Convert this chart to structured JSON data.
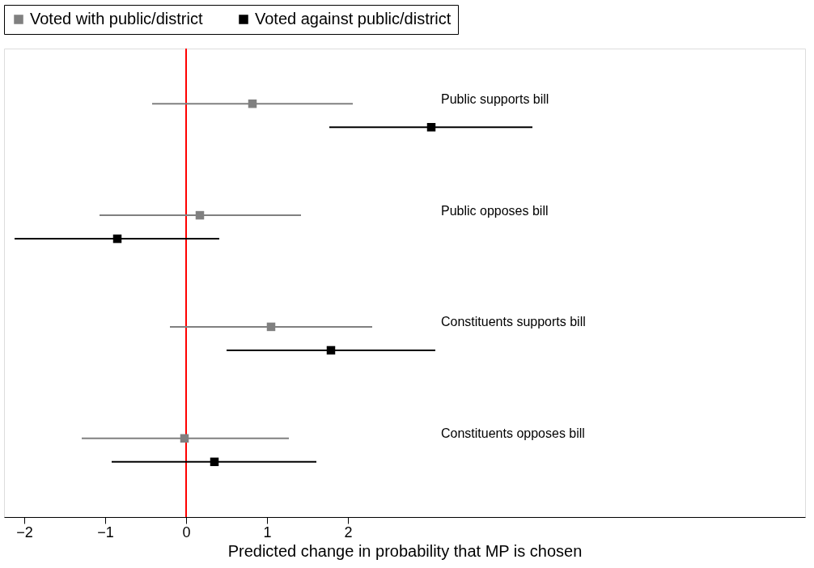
{
  "chart_data": {
    "type": "scatter",
    "orientation": "horizontal",
    "xlabel": "Predicted change in probability that MP is chosen",
    "categories": [
      null,
      null,
      null,
      null
    ],
    "series": [
      {
        "name": "Voted with public/district",
        "color": "#808080",
        "values": [
          0.82,
          0.17,
          1.05,
          -0.02
        ],
        "errors": [
          [
            -0.42,
            2.06
          ],
          [
            -1.07,
            1.42
          ],
          [
            -0.2,
            2.3
          ],
          [
            -1.29,
            1.27
          ]
        ]
      },
      {
        "name": "Voted against public/district",
        "color": "#000000",
        "values": [
          3.03,
          -0.85,
          1.79,
          0.35
        ],
        "errors": [
          [
            1.77,
            4.28
          ],
          [
            -2.12,
            0.41
          ],
          [
            0.5,
            3.08
          ],
          [
            -0.92,
            1.61
          ]
        ]
      }
    ],
    "annotations": [
      "Public supports bill",
      "Public opposes bill",
      "Constituents supports bill",
      "Constituents opposes bill"
    ],
    "xlim": [
      -2.25,
      7.65
    ],
    "xticks": [
      -2,
      -1,
      0,
      1,
      2
    ],
    "ref_lines": [
      {
        "axis": "x",
        "value": 0,
        "color": "#ff0000"
      }
    ],
    "marker": "square",
    "legend": "top",
    "grid": false
  }
}
